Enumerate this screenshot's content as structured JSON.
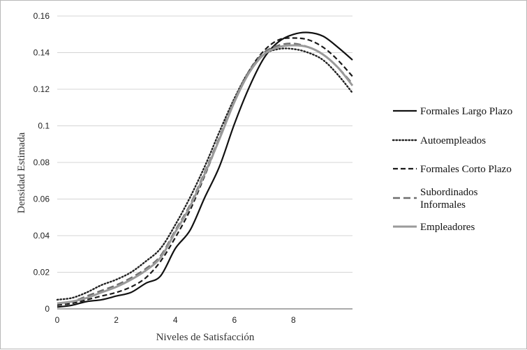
{
  "chart_data": {
    "type": "line",
    "title": "",
    "xlabel": "Niveles de Satisfacción",
    "ylabel": "Densidad Estimada",
    "xlim": [
      0,
      10
    ],
    "ylim": [
      0,
      0.16
    ],
    "x_ticks": [
      0,
      2,
      4,
      6,
      8
    ],
    "y_ticks": [
      0,
      0.02,
      0.04,
      0.06,
      0.08,
      0.1,
      0.12,
      0.14,
      0.16
    ],
    "y_tick_labels": [
      "0",
      "0.02",
      "0.04",
      "0.06",
      "0.08",
      "0.1",
      "0.12",
      "0.14",
      "0.16"
    ],
    "grid": "horizontal",
    "legend_position": "right",
    "x": [
      0,
      0.5,
      1,
      1.5,
      2,
      2.5,
      3,
      3.5,
      4,
      4.5,
      5,
      5.5,
      6,
      6.5,
      7,
      7.5,
      8,
      8.5,
      9,
      9.5,
      10
    ],
    "series": [
      {
        "name": "Formales Largo Plazo",
        "legend": [
          "Formales Largo Plazo"
        ],
        "color": "#111111",
        "style": "solid",
        "values": [
          0.001,
          0.002,
          0.004,
          0.005,
          0.007,
          0.009,
          0.014,
          0.018,
          0.033,
          0.043,
          0.061,
          0.078,
          0.101,
          0.121,
          0.137,
          0.146,
          0.15,
          0.151,
          0.149,
          0.143,
          0.136
        ]
      },
      {
        "name": "Autoempleados",
        "legend": [
          "Autoempleados"
        ],
        "color": "#222222",
        "style": "dotted",
        "values": [
          0.005,
          0.006,
          0.009,
          0.013,
          0.016,
          0.02,
          0.026,
          0.033,
          0.046,
          0.061,
          0.078,
          0.097,
          0.115,
          0.13,
          0.139,
          0.142,
          0.142,
          0.14,
          0.136,
          0.128,
          0.118
        ]
      },
      {
        "name": "Formales Corto Plazo",
        "legend": [
          "Formales Corto Plazo"
        ],
        "color": "#1a1a1a",
        "style": "dashed",
        "values": [
          0.002,
          0.003,
          0.005,
          0.007,
          0.009,
          0.012,
          0.017,
          0.026,
          0.039,
          0.054,
          0.073,
          0.093,
          0.113,
          0.13,
          0.141,
          0.147,
          0.148,
          0.147,
          0.143,
          0.136,
          0.127
        ]
      },
      {
        "name": "Subordinados Informales",
        "legend": [
          "Subordinados",
          "Informales"
        ],
        "color": "#6e6e6e",
        "style": "longdash",
        "values": [
          0.003,
          0.004,
          0.007,
          0.01,
          0.013,
          0.017,
          0.022,
          0.029,
          0.043,
          0.057,
          0.075,
          0.094,
          0.114,
          0.13,
          0.14,
          0.144,
          0.145,
          0.143,
          0.139,
          0.132,
          0.123
        ]
      },
      {
        "name": "Empleadores",
        "legend": [
          "Empleadores"
        ],
        "color": "#9a9a9a",
        "style": "solid-thick",
        "values": [
          0.003,
          0.004,
          0.006,
          0.009,
          0.012,
          0.016,
          0.021,
          0.028,
          0.042,
          0.056,
          0.074,
          0.093,
          0.113,
          0.129,
          0.139,
          0.143,
          0.144,
          0.143,
          0.139,
          0.132,
          0.122
        ]
      }
    ]
  }
}
